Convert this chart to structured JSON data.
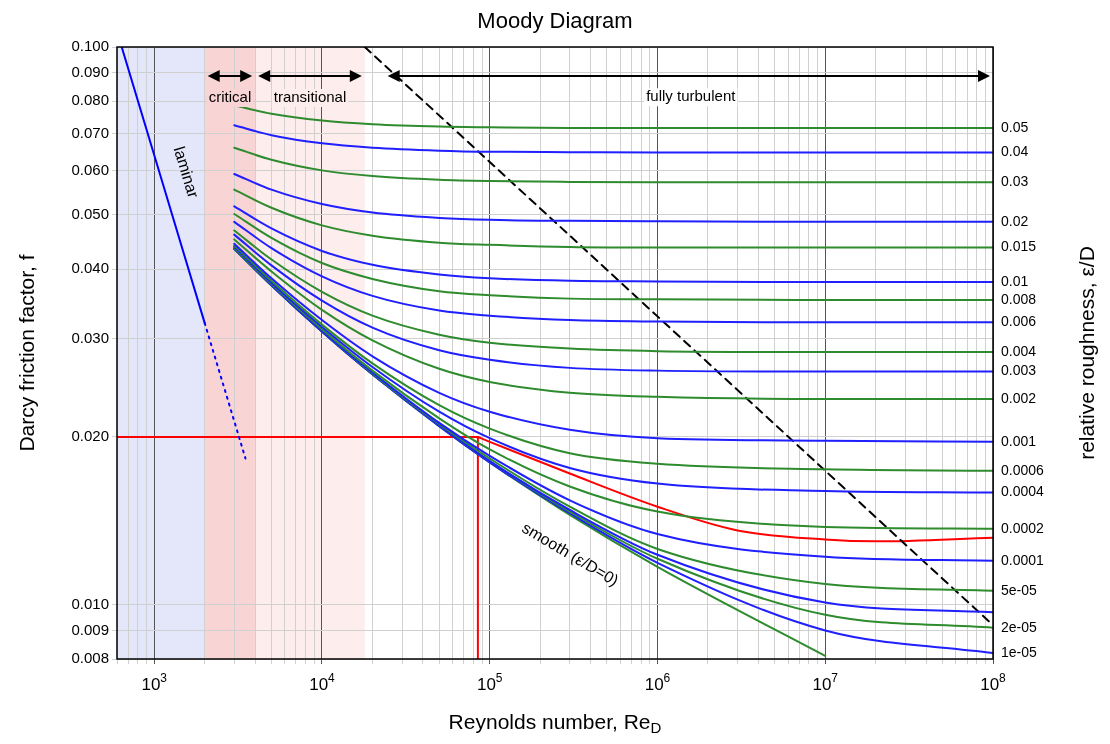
{
  "chart_data": {
    "type": "line",
    "title": "Moody Diagram",
    "xlabel": "Reynolds number, Re$_{D}$",
    "ylabel": "Darcy friction factor, f",
    "y2label": "relative roughness, ε/D",
    "log": "xy",
    "grid": true,
    "legend": false,
    "xlim": [
      600,
      100000000
    ],
    "ylim": [
      0.008,
      0.1
    ],
    "xticks": [
      {
        "value": 600,
        "label": null
      },
      {
        "value": 700,
        "label": null
      },
      {
        "value": 800,
        "label": null
      },
      {
        "value": 900,
        "label": null
      },
      {
        "value": 1000,
        "label": "10$^{3}$"
      },
      {
        "value": 2000,
        "label": null
      },
      {
        "value": 3000,
        "label": null
      },
      {
        "value": 4000,
        "label": null
      },
      {
        "value": 5000,
        "label": null
      },
      {
        "value": 6000,
        "label": null
      },
      {
        "value": 7000,
        "label": null
      },
      {
        "value": 8000,
        "label": null
      },
      {
        "value": 9000,
        "label": null
      },
      {
        "value": 10000,
        "label": "10$^{4}$"
      },
      {
        "value": 20000,
        "label": null
      },
      {
        "value": 30000,
        "label": null
      },
      {
        "value": 40000,
        "label": null
      },
      {
        "value": 50000,
        "label": null
      },
      {
        "value": 60000,
        "label": null
      },
      {
        "value": 70000,
        "label": null
      },
      {
        "value": 80000,
        "label": null
      },
      {
        "value": 90000,
        "label": null
      },
      {
        "value": 100000,
        "label": "10$^{5}$"
      },
      {
        "value": 200000,
        "label": null
      },
      {
        "value": 300000,
        "label": null
      },
      {
        "value": 400000,
        "label": null
      },
      {
        "value": 500000,
        "label": null
      },
      {
        "value": 600000,
        "label": null
      },
      {
        "value": 700000,
        "label": null
      },
      {
        "value": 800000,
        "label": null
      },
      {
        "value": 900000,
        "label": null
      },
      {
        "value": 1000000,
        "label": "10$^{6}$"
      },
      {
        "value": 2000000,
        "label": null
      },
      {
        "value": 3000000,
        "label": null
      },
      {
        "value": 4000000,
        "label": null
      },
      {
        "value": 5000000,
        "label": null
      },
      {
        "value": 6000000,
        "label": null
      },
      {
        "value": 7000000,
        "label": null
      },
      {
        "value": 8000000,
        "label": null
      },
      {
        "value": 9000000,
        "label": null
      },
      {
        "value": 10000000,
        "label": "10$^{7}$"
      },
      {
        "value": 20000000,
        "label": null
      },
      {
        "value": 30000000,
        "label": null
      },
      {
        "value": 40000000,
        "label": null
      },
      {
        "value": 50000000,
        "label": null
      },
      {
        "value": 60000000,
        "label": null
      },
      {
        "value": 70000000,
        "label": null
      },
      {
        "value": 80000000,
        "label": null
      },
      {
        "value": 90000000,
        "label": null
      },
      {
        "value": 100000000,
        "label": "10$^{8}$"
      }
    ],
    "yticks": [
      0.008,
      0.009,
      {
        "value": 0.01,
        "label": "0.010"
      },
      {
        "value": 0.02,
        "label": "0.020"
      },
      {
        "value": 0.03,
        "label": "0.030"
      },
      {
        "value": 0.04,
        "label": "0.040"
      },
      {
        "value": 0.05,
        "label": "0.050"
      },
      {
        "value": 0.06,
        "label": "0.060"
      },
      {
        "value": 0.07,
        "label": "0.070"
      },
      {
        "value": 0.08,
        "label": "0.080"
      },
      {
        "value": 0.09,
        "label": "0.090"
      },
      {
        "value": 0.1,
        "label": "0.100"
      }
    ],
    "bands": [
      {
        "axis": "x",
        "from": 600,
        "to": 2000,
        "color": "#e4e6fa"
      },
      {
        "axis": "x",
        "from": 2000,
        "to": 4000,
        "color": "#f9d4d4",
        "label": "critical"
      },
      {
        "axis": "x",
        "from": 4000,
        "to": 18000,
        "color": "#fdeded",
        "label": "transitional"
      }
    ],
    "annotations": [
      "laminar",
      "smooth (ε/D=0)",
      "fully turbulent"
    ],
    "x": [
      3000,
      5000,
      10000,
      20000,
      50000,
      100000,
      300000,
      1000000,
      10000000,
      100000000
    ],
    "series": [
      {
        "color": "#0000ff",
        "x": [
          640,
          2000
        ],
        "values": [
          0.1,
          0.032
        ]
      },
      {
        "color": "#0000ff",
        "line_style": "dotted",
        "x": [
          2000,
          3500
        ],
        "values": [
          0.032,
          0.0183
        ]
      },
      {
        "name": "0.05",
        "color": "#2e8b2e",
        "values": [
          0.0786,
          0.0759,
          0.0738,
          0.0727,
          0.072,
          0.0718,
          0.0716,
          0.0716,
          0.0716,
          0.0716
        ]
      },
      {
        "name": "0.04",
        "color": "#1f1fff",
        "values": [
          0.0724,
          0.0695,
          0.0672,
          0.066,
          0.0652,
          0.0649,
          0.0648,
          0.0647,
          0.0647,
          0.0647
        ]
      },
      {
        "name": "0.03",
        "color": "#2e8b2e",
        "values": [
          0.066,
          0.0628,
          0.0601,
          0.0587,
          0.0578,
          0.0575,
          0.0573,
          0.0572,
          0.0572,
          0.0572
        ]
      },
      {
        "name": "0.02",
        "color": "#1f1fff",
        "values": [
          0.0592,
          0.0555,
          0.0523,
          0.0505,
          0.0494,
          0.049,
          0.0488,
          0.0487,
          0.0486,
          0.0486
        ]
      },
      {
        "name": "0.015",
        "color": "#2e8b2e",
        "values": [
          0.0555,
          0.0515,
          0.0479,
          0.0459,
          0.0446,
          0.0442,
          0.0438,
          0.0437,
          0.0437,
          0.0437
        ]
      },
      {
        "name": "0.01",
        "color": "#1f1fff",
        "values": [
          0.0518,
          0.0473,
          0.0431,
          0.0407,
          0.0391,
          0.0385,
          0.0381,
          0.038,
          0.0379,
          0.0379
        ]
      },
      {
        "name": "0.008",
        "color": "#2e8b2e",
        "values": [
          0.0502,
          0.0455,
          0.041,
          0.0384,
          0.0365,
          0.0359,
          0.0354,
          0.0353,
          0.0352,
          0.0352
        ]
      },
      {
        "name": "0.006",
        "color": "#1f1fff",
        "values": [
          0.0486,
          0.0436,
          0.0388,
          0.0358,
          0.0337,
          0.033,
          0.0324,
          0.0322,
          0.0321,
          0.0321
        ]
      },
      {
        "name": "0.004",
        "color": "#2e8b2e",
        "values": [
          0.0469,
          0.0416,
          0.0364,
          0.033,
          0.0305,
          0.0295,
          0.0288,
          0.0285,
          0.0284,
          0.0284
        ]
      },
      {
        "name": "0.003",
        "color": "#1f1fff",
        "values": [
          0.0461,
          0.0406,
          0.0351,
          0.0314,
          0.0286,
          0.0275,
          0.0266,
          0.0263,
          0.0262,
          0.0262
        ]
      },
      {
        "name": "0.002",
        "color": "#2e8b2e",
        "values": [
          0.0452,
          0.0396,
          0.0338,
          0.0298,
          0.0265,
          0.0251,
          0.024,
          0.0236,
          0.0234,
          0.0234
        ]
      },
      {
        "name": "0.001",
        "color": "#1f1fff",
        "values": [
          0.0444,
          0.0385,
          0.0324,
          0.0279,
          0.024,
          0.0222,
          0.0206,
          0.0199,
          0.0197,
          0.0196
        ]
      },
      {
        "name": "0.0006",
        "color": "#2e8b2e",
        "values": [
          0.0441,
          0.0381,
          0.0318,
          0.0271,
          0.0228,
          0.0207,
          0.0187,
          0.0179,
          0.0175,
          0.0174
        ]
      },
      {
        "name": "0.0004",
        "color": "#1f1fff",
        "values": [
          0.0439,
          0.0378,
          0.0315,
          0.0267,
          0.0222,
          0.0199,
          0.0176,
          0.0165,
          0.016,
          0.0159
        ]
      },
      {
        "name": "0.0002",
        "color": "#2e8b2e",
        "values": [
          0.0437,
          0.0376,
          0.0312,
          0.0263,
          0.0216,
          0.019,
          0.0163,
          0.0147,
          0.0138,
          0.0137
        ]
      },
      {
        "name": "0.0001",
        "color": "#1f1fff",
        "values": [
          0.0436,
          0.0375,
          0.031,
          0.0261,
          0.0212,
          0.0185,
          0.0154,
          0.0134,
          0.0122,
          0.012
        ]
      },
      {
        "name": "5e-05",
        "color": "#2e8b2e",
        "values": [
          0.0435,
          0.0375,
          0.031,
          0.026,
          0.0211,
          0.0183,
          0.015,
          0.0126,
          0.0109,
          0.0106
        ]
      },
      {
        "color": "#1f1fff",
        "values": [
          0.0435,
          0.0374,
          0.0309,
          0.0259,
          0.021,
          0.0181,
          0.0148,
          0.0123,
          0.0101,
          0.0097
        ]
      },
      {
        "name": "2e-05",
        "color": "#2e8b2e",
        "values": [
          0.0435,
          0.0374,
          0.0309,
          0.0259,
          0.021,
          0.0181,
          0.0147,
          0.0121,
          0.0096,
          0.0091
        ]
      },
      {
        "name": "1e-05",
        "color": "#1f1fff",
        "values": [
          0.0435,
          0.0374,
          0.0309,
          0.0259,
          0.0209,
          0.018,
          0.0146,
          0.0119,
          0.009,
          0.0082
        ]
      },
      {
        "color": "#2e8b2e",
        "values": [
          0.0435,
          0.0374,
          0.0309,
          0.0259,
          0.0209,
          0.018,
          0.0145,
          0.0117,
          0.0081,
          null
        ]
      },
      {
        "color": "#000000",
        "line_style": "dashed",
        "x": [
          18000,
          100000000
        ],
        "values": [
          0.1,
          0.0092
        ]
      },
      {
        "color": "#ff0000",
        "x": [
          600,
          85000
        ],
        "values": [
          0.02,
          0.02
        ]
      },
      {
        "color": "#ff0000",
        "x": [
          85000,
          85000
        ],
        "values": [
          0.008,
          0.02
        ]
      },
      {
        "color": "#ff0000",
        "x": [
          85000,
          100000,
          300000,
          1000000,
          3000000,
          10000000,
          20000000,
          100000000
        ],
        "values": [
          0.02,
          0.0196,
          0.0172,
          0.015,
          0.0136,
          0.0131,
          0.013,
          0.0132
        ]
      }
    ]
  }
}
